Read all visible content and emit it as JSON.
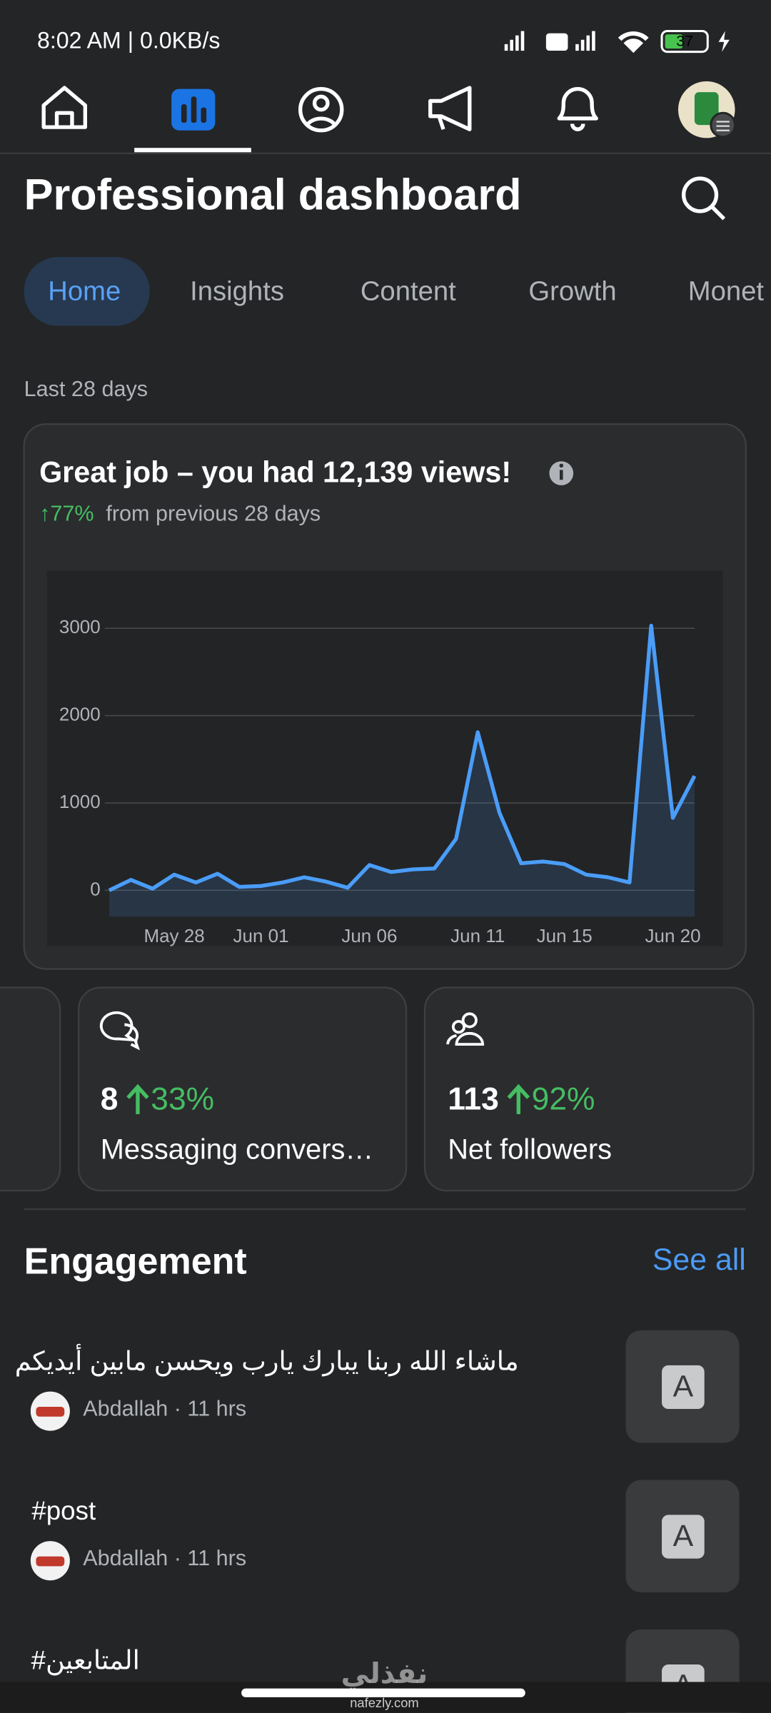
{
  "status_bar": {
    "time": "8:02 AM | 0.0KB/s",
    "battery": "37"
  },
  "header": {
    "title": "Professional dashboard"
  },
  "tabs": [
    "Home",
    "Insights",
    "Content",
    "Growth",
    "Monet"
  ],
  "period": "Last 28 days",
  "views_card": {
    "headline": "Great job – you had 12,139 views!",
    "change": "↑77%",
    "change_text": "from previous 28 days"
  },
  "chart_data": {
    "type": "line",
    "color": "#4a9df8",
    "grid": true,
    "categories": [
      null,
      null,
      null,
      "May 28",
      null,
      null,
      null,
      "Jun 01",
      null,
      null,
      null,
      null,
      "Jun 06",
      null,
      null,
      null,
      null,
      "Jun 11",
      null,
      null,
      null,
      "Jun 15",
      null,
      null,
      null,
      null,
      "Jun 20",
      null
    ],
    "values": [
      0,
      120,
      20,
      180,
      90,
      190,
      40,
      50,
      90,
      150,
      100,
      30,
      290,
      210,
      240,
      250,
      590,
      1810,
      890,
      310,
      330,
      300,
      180,
      150,
      90,
      3030,
      830,
      1310
    ],
    "ylim": [
      -300,
      3600
    ],
    "yticks": [
      0,
      1000,
      2000,
      3000
    ]
  },
  "stats": [
    {
      "value": 8,
      "change": "33%",
      "label": "Messaging convers…"
    },
    {
      "value": 113,
      "change": "92%",
      "label": "Net followers"
    }
  ],
  "engagement": {
    "title": "Engagement",
    "see_all": "See all",
    "items": [
      {
        "text": "ماشاء الله ربنا يبارك يارب ويحسن مابين أيديكم",
        "meta": "Abdallah · 11 hrs",
        "thumb": "A"
      },
      {
        "text": "#post",
        "meta": "Abdallah · 11 hrs",
        "thumb": "A"
      },
      {
        "text": "#المتابعين",
        "thumb": "A"
      }
    ]
  },
  "watermark": {
    "logo": "نفذلي",
    "site": "nafezly.com"
  }
}
